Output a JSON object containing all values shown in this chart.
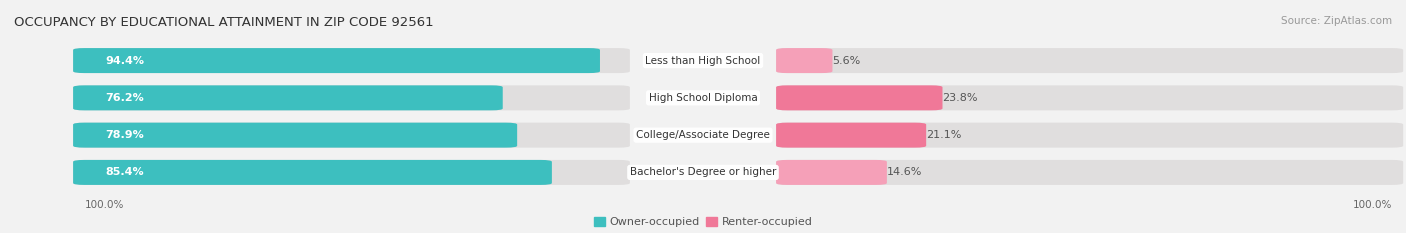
{
  "title": "OCCUPANCY BY EDUCATIONAL ATTAINMENT IN ZIP CODE 92561",
  "source": "Source: ZipAtlas.com",
  "categories": [
    "Less than High School",
    "High School Diploma",
    "College/Associate Degree",
    "Bachelor's Degree or higher"
  ],
  "owner_pct": [
    94.4,
    76.2,
    78.9,
    85.4
  ],
  "renter_pct": [
    5.6,
    23.8,
    21.1,
    14.6
  ],
  "owner_color": "#3DBFBF",
  "renter_color": "#F07898",
  "renter_color_light": "#F5A0B8",
  "bg_color": "#f2f2f2",
  "bar_bg_color": "#e0dede",
  "title_fontsize": 9.5,
  "source_fontsize": 7.5,
  "label_fontsize": 8,
  "axis_label_fontsize": 7.5,
  "legend_fontsize": 8,
  "left_label": "100.0%",
  "right_label": "100.0%"
}
